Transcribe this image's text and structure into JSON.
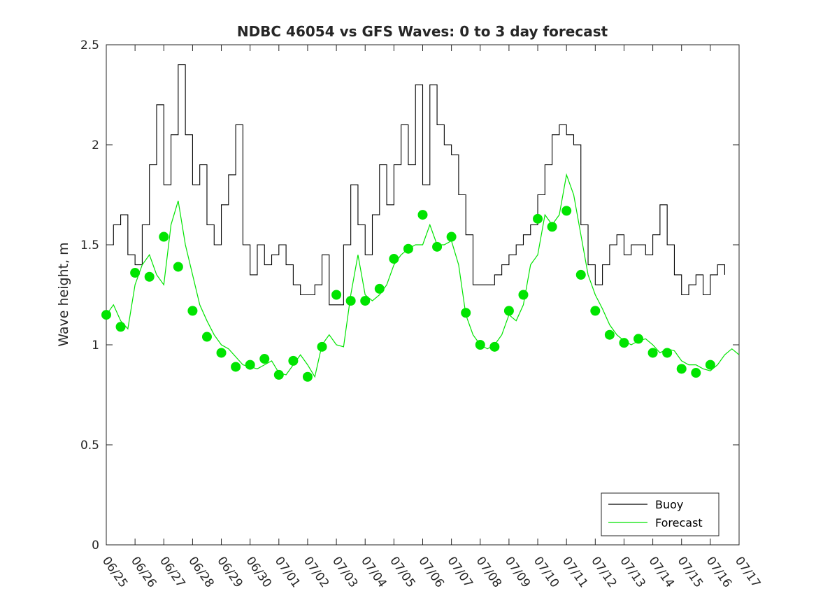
{
  "chart_data": {
    "type": "line",
    "title": "NDBC 46054 vs GFS Waves: 0 to 3 day forecast",
    "xlabel": "",
    "ylabel": "Wave height, m",
    "x_axis": "date",
    "x_ticks": [
      "06/25",
      "06/26",
      "06/27",
      "06/28",
      "06/29",
      "06/30",
      "07/01",
      "07/02",
      "07/03",
      "07/04",
      "07/05",
      "07/06",
      "07/07",
      "07/08",
      "07/09",
      "07/10",
      "07/11",
      "07/12",
      "07/13",
      "07/14",
      "07/15",
      "07/16",
      "07/17"
    ],
    "xlim": [
      "06/25",
      "07/17"
    ],
    "y_ticks": [
      "0",
      "0.5",
      "1",
      "1.5",
      "2",
      "2.5"
    ],
    "ylim": [
      0,
      2.5
    ],
    "grid": false,
    "legend": {
      "position": "bottom-right",
      "entries": [
        "Buoy",
        "Forecast"
      ]
    },
    "colors": {
      "buoy": "#000000",
      "forecast": "#00e400",
      "axes": "#262626"
    },
    "series": [
      {
        "name": "Buoy",
        "x": [
          "06/25 00:00",
          "06/25 06:00",
          "06/25 12:00",
          "06/25 18:00",
          "06/26 00:00",
          "06/26 06:00",
          "06/26 12:00",
          "06/26 18:00",
          "06/27 00:00",
          "06/27 06:00",
          "06/27 12:00",
          "06/27 18:00",
          "06/28 00:00",
          "06/28 06:00",
          "06/28 12:00",
          "06/28 18:00",
          "06/29 00:00",
          "06/29 06:00",
          "06/29 12:00",
          "06/29 18:00",
          "06/30 00:00",
          "06/30 06:00",
          "06/30 12:00",
          "06/30 18:00",
          "07/01 00:00",
          "07/01 06:00",
          "07/01 12:00",
          "07/01 18:00",
          "07/02 00:00",
          "07/02 06:00",
          "07/02 12:00",
          "07/02 18:00",
          "07/03 00:00",
          "07/03 06:00",
          "07/03 12:00",
          "07/03 18:00",
          "07/04 00:00",
          "07/04 06:00",
          "07/04 12:00",
          "07/04 18:00",
          "07/05 00:00",
          "07/05 06:00",
          "07/05 12:00",
          "07/05 18:00",
          "07/06 00:00",
          "07/06 06:00",
          "07/06 12:00",
          "07/06 18:00",
          "07/07 00:00",
          "07/07 06:00",
          "07/07 12:00",
          "07/07 18:00",
          "07/08 00:00",
          "07/08 06:00",
          "07/08 12:00",
          "07/08 18:00",
          "07/09 00:00",
          "07/09 06:00",
          "07/09 12:00",
          "07/09 18:00",
          "07/10 00:00",
          "07/10 06:00",
          "07/10 12:00",
          "07/10 18:00",
          "07/11 00:00",
          "07/11 06:00",
          "07/11 12:00",
          "07/11 18:00",
          "07/12 00:00",
          "07/12 06:00",
          "07/12 12:00",
          "07/12 18:00",
          "07/13 00:00",
          "07/13 06:00",
          "07/13 12:00",
          "07/13 18:00",
          "07/14 00:00",
          "07/14 06:00",
          "07/14 12:00",
          "07/14 18:00",
          "07/15 00:00",
          "07/15 06:00",
          "07/15 12:00",
          "07/15 18:00",
          "07/16 00:00",
          "07/16 06:00",
          "07/16 12:00"
        ],
        "values": [
          1.5,
          1.6,
          1.65,
          1.45,
          1.4,
          1.6,
          1.9,
          2.2,
          1.8,
          2.05,
          2.4,
          2.05,
          1.8,
          1.9,
          1.6,
          1.5,
          1.7,
          1.85,
          2.1,
          1.5,
          1.35,
          1.5,
          1.4,
          1.45,
          1.5,
          1.4,
          1.3,
          1.25,
          1.25,
          1.3,
          1.45,
          1.2,
          1.2,
          1.5,
          1.8,
          1.6,
          1.45,
          1.65,
          1.9,
          1.7,
          1.9,
          2.1,
          1.9,
          2.3,
          1.8,
          2.3,
          2.1,
          2.0,
          1.95,
          1.75,
          1.55,
          1.3,
          1.3,
          1.3,
          1.35,
          1.4,
          1.45,
          1.5,
          1.55,
          1.6,
          1.75,
          1.9,
          2.05,
          2.1,
          2.05,
          2.0,
          1.6,
          1.4,
          1.3,
          1.4,
          1.5,
          1.55,
          1.45,
          1.5,
          1.5,
          1.45,
          1.55,
          1.7,
          1.5,
          1.35,
          1.25,
          1.3,
          1.35,
          1.25,
          1.35,
          1.4,
          1.35
        ]
      },
      {
        "name": "Forecast",
        "x": [
          "06/25 00:00",
          "06/25 06:00",
          "06/25 12:00",
          "06/25 18:00",
          "06/26 00:00",
          "06/26 06:00",
          "06/26 12:00",
          "06/26 18:00",
          "06/27 00:00",
          "06/27 06:00",
          "06/27 12:00",
          "06/27 18:00",
          "06/28 00:00",
          "06/28 06:00",
          "06/28 12:00",
          "06/28 18:00",
          "06/29 00:00",
          "06/29 06:00",
          "06/29 12:00",
          "06/29 18:00",
          "06/30 00:00",
          "06/30 06:00",
          "06/30 12:00",
          "06/30 18:00",
          "07/01 00:00",
          "07/01 06:00",
          "07/01 12:00",
          "07/01 18:00",
          "07/02 00:00",
          "07/02 06:00",
          "07/02 12:00",
          "07/02 18:00",
          "07/03 00:00",
          "07/03 06:00",
          "07/03 12:00",
          "07/03 18:00",
          "07/04 00:00",
          "07/04 06:00",
          "07/04 12:00",
          "07/04 18:00",
          "07/05 00:00",
          "07/05 06:00",
          "07/05 12:00",
          "07/05 18:00",
          "07/06 00:00",
          "07/06 06:00",
          "07/06 12:00",
          "07/06 18:00",
          "07/07 00:00",
          "07/07 06:00",
          "07/07 12:00",
          "07/07 18:00",
          "07/08 00:00",
          "07/08 06:00",
          "07/08 12:00",
          "07/08 18:00",
          "07/09 00:00",
          "07/09 06:00",
          "07/09 12:00",
          "07/09 18:00",
          "07/10 00:00",
          "07/10 06:00",
          "07/10 12:00",
          "07/10 18:00",
          "07/11 00:00",
          "07/11 06:00",
          "07/11 12:00",
          "07/11 18:00",
          "07/12 00:00",
          "07/12 06:00",
          "07/12 12:00",
          "07/12 18:00",
          "07/13 00:00",
          "07/13 06:00",
          "07/13 12:00",
          "07/13 18:00",
          "07/14 00:00",
          "07/14 06:00",
          "07/14 12:00",
          "07/14 18:00",
          "07/15 00:00",
          "07/15 06:00",
          "07/15 12:00",
          "07/15 18:00",
          "07/16 00:00",
          "07/16 06:00",
          "07/16 12:00",
          "07/16 18:00",
          "07/17 00:00"
        ],
        "values": [
          1.15,
          1.2,
          1.12,
          1.08,
          1.3,
          1.4,
          1.45,
          1.35,
          1.3,
          1.6,
          1.72,
          1.5,
          1.35,
          1.2,
          1.12,
          1.05,
          1.0,
          0.98,
          0.94,
          0.9,
          0.89,
          0.88,
          0.9,
          0.92,
          0.86,
          0.85,
          0.9,
          0.95,
          0.9,
          0.84,
          1.0,
          1.05,
          1.0,
          0.99,
          1.25,
          1.45,
          1.25,
          1.22,
          1.25,
          1.3,
          1.4,
          1.45,
          1.48,
          1.5,
          1.5,
          1.6,
          1.5,
          1.5,
          1.52,
          1.4,
          1.15,
          1.05,
          1.0,
          0.98,
          1.0,
          1.05,
          1.15,
          1.12,
          1.2,
          1.4,
          1.45,
          1.65,
          1.6,
          1.65,
          1.85,
          1.75,
          1.55,
          1.35,
          1.25,
          1.18,
          1.1,
          1.05,
          1.02,
          1.0,
          1.02,
          1.03,
          1.0,
          0.96,
          0.98,
          0.97,
          0.92,
          0.9,
          0.9,
          0.88,
          0.87,
          0.9,
          0.95,
          0.98,
          0.95
        ]
      },
      {
        "name": "Forecast",
        "marker": "circle",
        "x": [
          "06/25 00:00",
          "06/25 12:00",
          "06/26 00:00",
          "06/26 12:00",
          "06/27 00:00",
          "06/27 12:00",
          "06/28 00:00",
          "06/28 12:00",
          "06/29 00:00",
          "06/29 12:00",
          "06/30 00:00",
          "06/30 12:00",
          "07/01 00:00",
          "07/01 12:00",
          "07/02 00:00",
          "07/02 12:00",
          "07/03 00:00",
          "07/03 12:00",
          "07/04 00:00",
          "07/04 12:00",
          "07/05 00:00",
          "07/05 12:00",
          "07/06 00:00",
          "07/06 12:00",
          "07/07 00:00",
          "07/07 12:00",
          "07/08 00:00",
          "07/08 12:00",
          "07/09 00:00",
          "07/09 12:00",
          "07/10 00:00",
          "07/10 12:00",
          "07/11 00:00",
          "07/11 12:00",
          "07/12 00:00",
          "07/12 12:00",
          "07/13 00:00",
          "07/13 12:00",
          "07/14 00:00",
          "07/14 12:00",
          "07/15 00:00",
          "07/15 12:00",
          "07/16 00:00"
        ],
        "values": [
          1.15,
          1.09,
          1.36,
          1.34,
          1.54,
          1.39,
          1.17,
          1.04,
          0.96,
          0.89,
          0.9,
          0.93,
          0.85,
          0.92,
          0.84,
          0.99,
          1.25,
          1.22,
          1.22,
          1.28,
          1.43,
          1.48,
          1.65,
          1.49,
          1.54,
          1.16,
          1.0,
          0.99,
          1.17,
          1.25,
          1.63,
          1.59,
          1.67,
          1.35,
          1.17,
          1.05,
          1.01,
          1.03,
          0.96,
          0.96,
          0.88,
          0.86,
          0.9
        ]
      }
    ]
  }
}
